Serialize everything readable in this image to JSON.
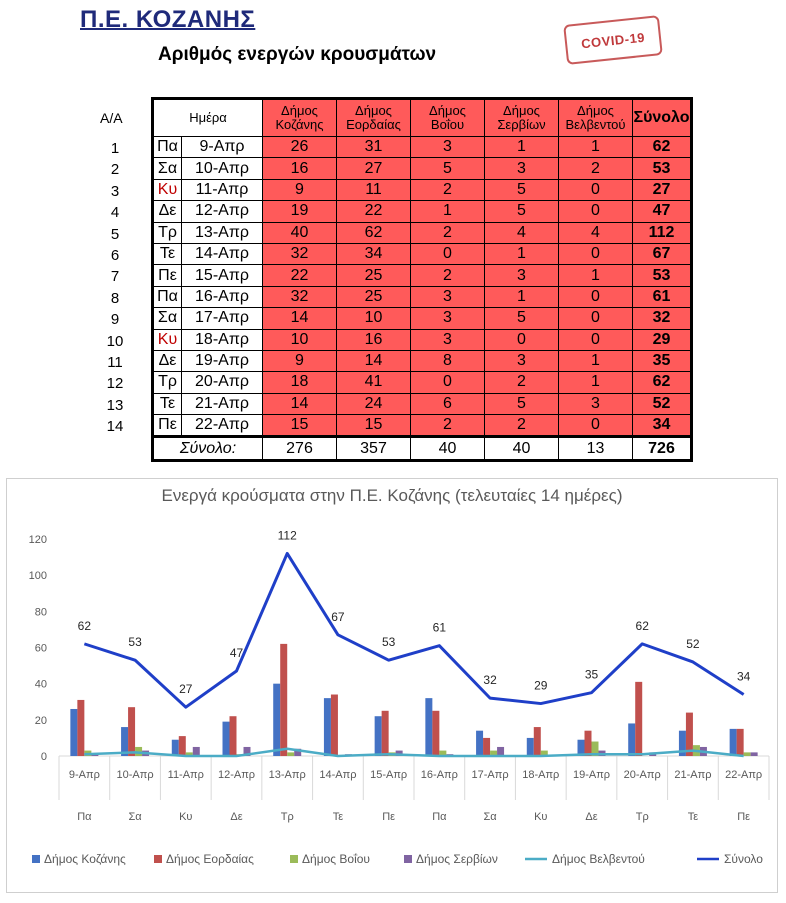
{
  "header": {
    "region": "Π.Ε. ΚΟΖΑΝΗΣ",
    "subtitle": "Αριθμός ενεργών κρουσμάτων",
    "stamp": "COVID-19"
  },
  "table": {
    "aa_header": "Α/Α",
    "columns": [
      "Ημέρα",
      "Δήμος Κοζάνης",
      "Δήμος Εορδαίας",
      "Δήμος Βοΐου",
      "Δήμος Σερβίων",
      "Δήμος Βελβεντού",
      "Σύνολο"
    ],
    "rows": [
      {
        "aa": "1",
        "dow": "Πα",
        "date": "9-Απρ",
        "v": [
          "26",
          "31",
          "3",
          "1",
          "1"
        ],
        "total": "62",
        "weekend": false
      },
      {
        "aa": "2",
        "dow": "Σα",
        "date": "10-Απρ",
        "v": [
          "16",
          "27",
          "5",
          "3",
          "2"
        ],
        "total": "53",
        "weekend": false
      },
      {
        "aa": "3",
        "dow": "Κυ",
        "date": "11-Απρ",
        "v": [
          "9",
          "11",
          "2",
          "5",
          "0"
        ],
        "total": "27",
        "weekend": true
      },
      {
        "aa": "4",
        "dow": "Δε",
        "date": "12-Απρ",
        "v": [
          "19",
          "22",
          "1",
          "5",
          "0"
        ],
        "total": "47",
        "weekend": false
      },
      {
        "aa": "5",
        "dow": "Τρ",
        "date": "13-Απρ",
        "v": [
          "40",
          "62",
          "2",
          "4",
          "4"
        ],
        "total": "112",
        "weekend": false
      },
      {
        "aa": "6",
        "dow": "Τε",
        "date": "14-Απρ",
        "v": [
          "32",
          "34",
          "0",
          "1",
          "0"
        ],
        "total": "67",
        "weekend": false
      },
      {
        "aa": "7",
        "dow": "Πε",
        "date": "15-Απρ",
        "v": [
          "22",
          "25",
          "2",
          "3",
          "1"
        ],
        "total": "53",
        "weekend": false
      },
      {
        "aa": "8",
        "dow": "Πα",
        "date": "16-Απρ",
        "v": [
          "32",
          "25",
          "3",
          "1",
          "0"
        ],
        "total": "61",
        "weekend": false
      },
      {
        "aa": "9",
        "dow": "Σα",
        "date": "17-Απρ",
        "v": [
          "14",
          "10",
          "3",
          "5",
          "0"
        ],
        "total": "32",
        "weekend": false
      },
      {
        "aa": "10",
        "dow": "Κυ",
        "date": "18-Απρ",
        "v": [
          "10",
          "16",
          "3",
          "0",
          "0"
        ],
        "total": "29",
        "weekend": true
      },
      {
        "aa": "11",
        "dow": "Δε",
        "date": "19-Απρ",
        "v": [
          "9",
          "14",
          "8",
          "3",
          "1"
        ],
        "total": "35",
        "weekend": false
      },
      {
        "aa": "12",
        "dow": "Τρ",
        "date": "20-Απρ",
        "v": [
          "18",
          "41",
          "0",
          "2",
          "1"
        ],
        "total": "62",
        "weekend": false
      },
      {
        "aa": "13",
        "dow": "Τε",
        "date": "21-Απρ",
        "v": [
          "14",
          "24",
          "6",
          "5",
          "3"
        ],
        "total": "52",
        "weekend": false
      },
      {
        "aa": "14",
        "dow": "Πε",
        "date": "22-Απρ",
        "v": [
          "15",
          "15",
          "2",
          "2",
          "0"
        ],
        "total": "34",
        "weekend": false
      }
    ],
    "totals": {
      "label": "Σύνολο:",
      "v": [
        "276",
        "357",
        "40",
        "40",
        "13"
      ],
      "total": "726"
    }
  },
  "chart_data": {
    "type": "bar",
    "title": "Ενεργά κρούσματα στην Π.Ε. Κοζάνης (τελευταίες 14 ημέρες)",
    "categories": [
      "9-Απρ",
      "10-Απρ",
      "11-Απρ",
      "12-Απρ",
      "13-Απρ",
      "14-Απρ",
      "15-Απρ",
      "16-Απρ",
      "17-Απρ",
      "18-Απρ",
      "19-Απρ",
      "20-Απρ",
      "21-Απρ",
      "22-Απρ"
    ],
    "categories2": [
      "Πα",
      "Σα",
      "Κυ",
      "Δε",
      "Τρ",
      "Τε",
      "Πε",
      "Πα",
      "Σα",
      "Κυ",
      "Δε",
      "Τρ",
      "Τε",
      "Πε"
    ],
    "ylim": [
      0,
      120
    ],
    "yticks": [
      0,
      20,
      40,
      60,
      80,
      100,
      120
    ],
    "grid": false,
    "legend_position": "bottom",
    "series": [
      {
        "name": "Δήμος Κοζάνης",
        "type": "bar",
        "color": "#4472c4",
        "values": [
          26,
          16,
          9,
          19,
          40,
          32,
          22,
          32,
          14,
          10,
          9,
          18,
          14,
          15
        ]
      },
      {
        "name": "Δήμος Εορδαίας",
        "type": "bar",
        "color": "#c0504d",
        "values": [
          31,
          27,
          11,
          22,
          62,
          34,
          25,
          25,
          10,
          16,
          14,
          41,
          24,
          15
        ]
      },
      {
        "name": "Δήμος Βοΐου",
        "type": "bar",
        "color": "#9bbb59",
        "values": [
          3,
          5,
          2,
          1,
          2,
          0,
          2,
          3,
          3,
          3,
          8,
          0,
          6,
          2
        ]
      },
      {
        "name": "Δήμος Σερβίων",
        "type": "bar",
        "color": "#8064a2",
        "values": [
          1,
          3,
          5,
          5,
          4,
          1,
          3,
          1,
          5,
          0,
          3,
          2,
          5,
          2
        ]
      },
      {
        "name": "Δήμος Βελβεντού",
        "type": "line",
        "color": "#4bacc6",
        "values": [
          1,
          2,
          0,
          0,
          4,
          0,
          1,
          0,
          0,
          0,
          1,
          1,
          3,
          0
        ]
      },
      {
        "name": "Σύνολο",
        "type": "line",
        "color": "#1f3fc8",
        "values": [
          62,
          53,
          27,
          47,
          112,
          67,
          53,
          61,
          32,
          29,
          35,
          62,
          52,
          34
        ],
        "labels": true
      }
    ]
  }
}
